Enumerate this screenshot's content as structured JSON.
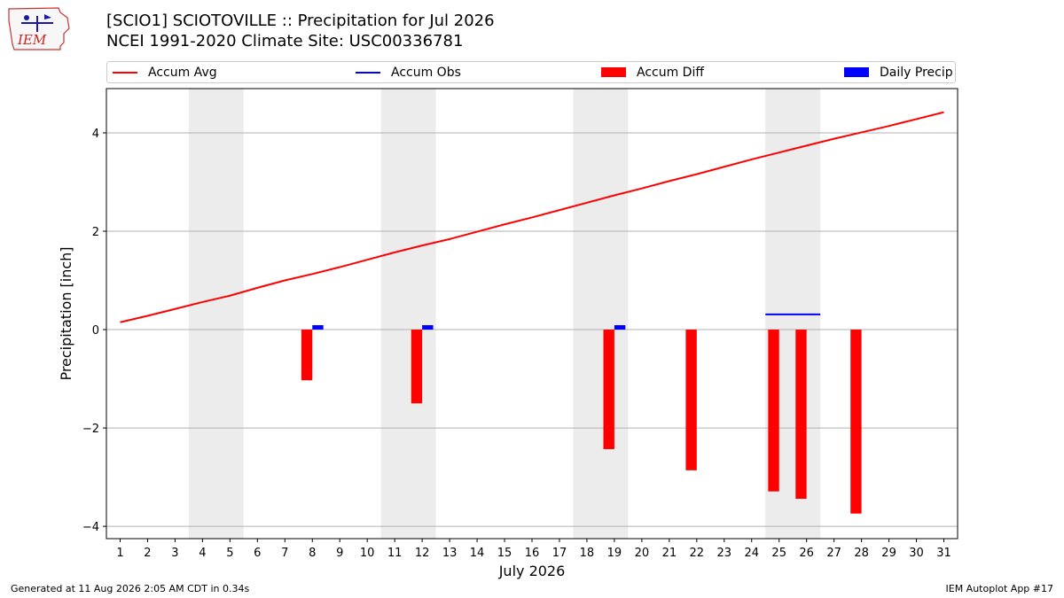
{
  "header": {
    "title_line1": "[SCIO1] SCIOTOVILLE :: Precipitation for Jul 2026",
    "title_line2": "NCEI 1991-2020 Climate Site: USC00336781"
  },
  "logo": {
    "text": "IEM",
    "icon": "iowa-state-logo-icon"
  },
  "legend": [
    {
      "label": "Accum Avg",
      "kind": "line",
      "color": "#ff0000"
    },
    {
      "label": "Accum Obs",
      "kind": "line",
      "color": "#0000ff"
    },
    {
      "label": "Accum Diff",
      "kind": "box",
      "color": "#ff0000"
    },
    {
      "label": "Daily Precip",
      "kind": "box",
      "color": "#0000ff"
    }
  ],
  "footer": {
    "left": "Generated at 11 Aug 2026 2:05 AM CDT in 0.34s",
    "right": "IEM Autoplot App #17"
  },
  "chart_data": {
    "type": "bar",
    "xlabel": "July 2026",
    "ylabel": "Precipitation [inch]",
    "xlim": [
      0.5,
      31.5
    ],
    "ylim": [
      -4.25,
      4.9
    ],
    "grid": "y",
    "legend_position": "top",
    "x_ticks": [
      1,
      2,
      3,
      4,
      5,
      6,
      7,
      8,
      9,
      10,
      11,
      12,
      13,
      14,
      15,
      16,
      17,
      18,
      19,
      20,
      21,
      22,
      23,
      24,
      25,
      26,
      27,
      28,
      29,
      30,
      31
    ],
    "y_ticks": [
      -4,
      -2,
      0,
      2,
      4
    ],
    "y_tick_labels": [
      "−4",
      "−2",
      "0",
      "2",
      "4"
    ],
    "shaded_weekends": [
      [
        3.5,
        5.5
      ],
      [
        10.5,
        12.5
      ],
      [
        17.5,
        19.5
      ],
      [
        24.5,
        26.5
      ]
    ],
    "series": [
      {
        "name": "Accum Avg",
        "type": "line",
        "color": "#ff0000",
        "x": [
          1,
          2,
          3,
          4,
          5,
          6,
          7,
          8,
          9,
          10,
          11,
          12,
          13,
          14,
          15,
          16,
          17,
          18,
          19,
          20,
          21,
          22,
          23,
          24,
          25,
          26,
          27,
          28,
          29,
          30,
          31
        ],
        "values": [
          0.15,
          0.28,
          0.42,
          0.56,
          0.69,
          0.85,
          1.0,
          1.13,
          1.27,
          1.42,
          1.57,
          1.71,
          1.84,
          1.99,
          2.14,
          2.28,
          2.43,
          2.58,
          2.73,
          2.87,
          3.02,
          3.16,
          3.31,
          3.46,
          3.6,
          3.74,
          3.88,
          4.01,
          4.14,
          4.28,
          4.42
        ]
      },
      {
        "name": "Accum Obs",
        "type": "line",
        "color": "#0000ff",
        "x": [
          24.5,
          25.5,
          26.5
        ],
        "values": [
          0.31,
          0.31,
          0.31
        ]
      },
      {
        "name": "Accum Diff",
        "type": "bar",
        "color": "#ff0000",
        "x": [
          8,
          12,
          19,
          22,
          25,
          26,
          28
        ],
        "values": [
          -1.03,
          -1.5,
          -2.43,
          -2.86,
          -3.29,
          -3.44,
          -3.74
        ]
      },
      {
        "name": "Daily Precip",
        "type": "bar",
        "color": "#0000ff",
        "x": [
          8,
          12,
          19
        ],
        "values": [
          0.09,
          0.09,
          0.09
        ]
      }
    ]
  }
}
